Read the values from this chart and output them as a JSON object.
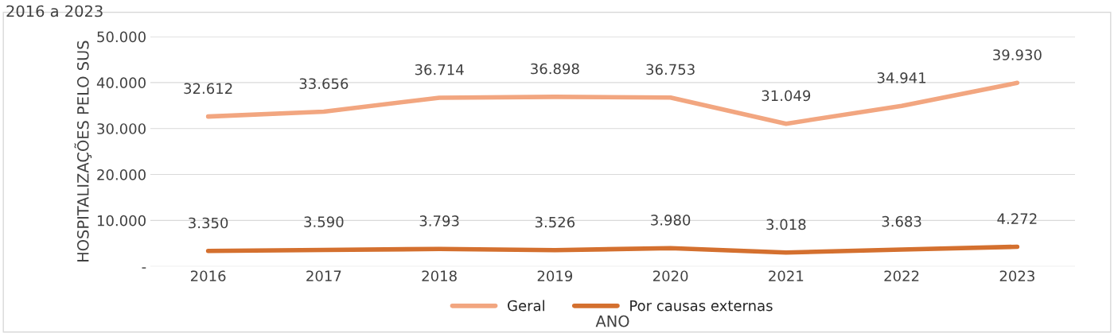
{
  "chart_data": {
    "type": "line",
    "title": "2016 a 2023",
    "xlabel": "ANO",
    "ylabel": "HOSPITALIZAÇÕES PELO SUS",
    "categories": [
      "2016",
      "2017",
      "2018",
      "2019",
      "2020",
      "2021",
      "2022",
      "2023"
    ],
    "series": [
      {
        "name": "Geral",
        "color": "#f2a680",
        "values": [
          32612,
          33656,
          36714,
          36898,
          36753,
          31049,
          34941,
          39930
        ],
        "value_labels": [
          "32.612",
          "33.656",
          "36.714",
          "36.898",
          "36.753",
          "31.049",
          "34.941",
          "39.930"
        ]
      },
      {
        "name": "Por causas externas",
        "color": "#d4702f",
        "values": [
          3350,
          3590,
          3793,
          3526,
          3980,
          3018,
          3683,
          4272
        ],
        "value_labels": [
          "3.350",
          "3.590",
          "3.793",
          "3.526",
          "3.980",
          "3.018",
          "3.683",
          "4.272"
        ]
      }
    ],
    "ylim": [
      0,
      50000
    ],
    "yticks": [
      {
        "value": 0,
        "label": "-"
      },
      {
        "value": 10000,
        "label": "10.000"
      },
      {
        "value": 20000,
        "label": "20.000"
      },
      {
        "value": 30000,
        "label": "30.000"
      },
      {
        "value": 40000,
        "label": "40.000"
      },
      {
        "value": 50000,
        "label": "50.000"
      }
    ],
    "grid": "y",
    "legend": "bottom",
    "marker": "none",
    "line_style": "solid"
  }
}
